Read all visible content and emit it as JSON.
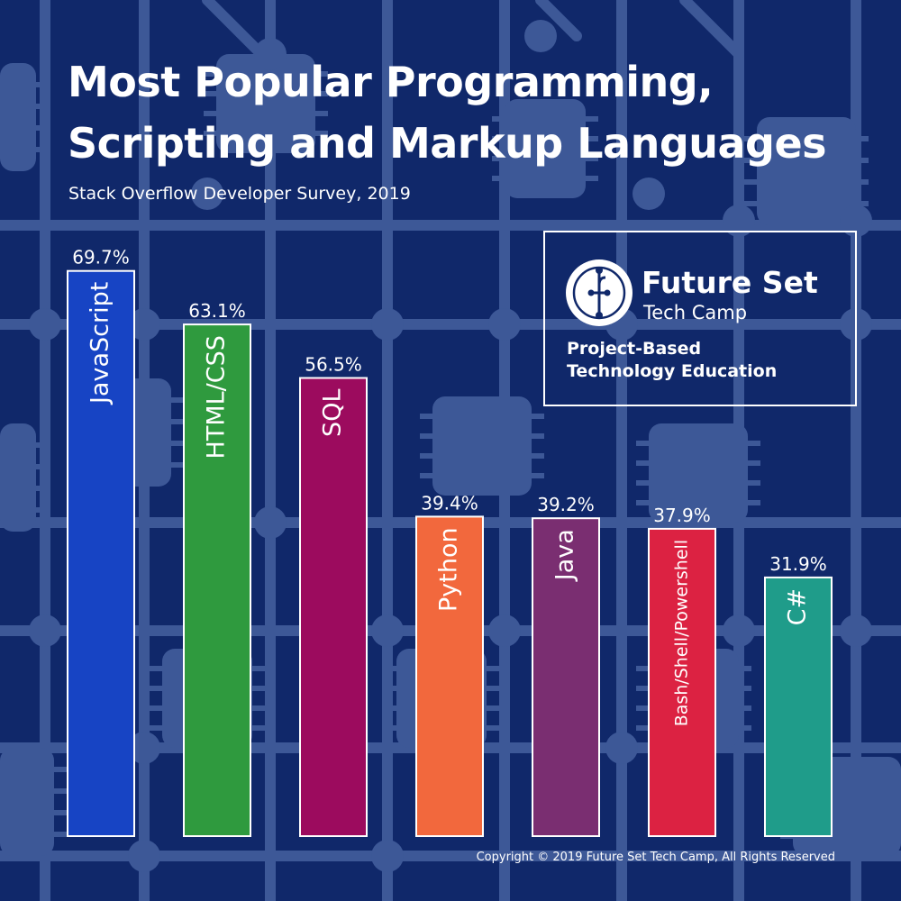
{
  "header": {
    "title_line1": "Most Popular Programming,",
    "title_line2": "Scripting and Markup Languages",
    "subtitle": "Stack Overflow Developer Survey, 2019"
  },
  "brand": {
    "name": "Future Set",
    "sub": "Tech Camp",
    "tagline_line1": "Project-Based",
    "tagline_line2": "Technology Education"
  },
  "footer": {
    "copyright": "Copyright © 2019 Future Set Tech Camp, All Rights Reserved"
  },
  "colors": {
    "background": "#10286a",
    "pattern": "#3d5897",
    "bars": [
      "#1744c4",
      "#2f9a3e",
      "#9c0b5e",
      "#f2683d",
      "#7a2e71",
      "#dc2242",
      "#1f9c8a"
    ]
  },
  "chart_data": {
    "type": "bar",
    "title": "Most Popular Programming, Scripting and Markup Languages",
    "subtitle": "Stack Overflow Developer Survey, 2019",
    "categories": [
      "JavaScript",
      "HTML/CSS",
      "SQL",
      "Python",
      "Java",
      "Bash/Shell/Powershell",
      "C#"
    ],
    "values": [
      69.7,
      63.1,
      56.5,
      39.4,
      39.2,
      37.9,
      31.9
    ],
    "value_labels": [
      "69.7%",
      "63.1%",
      "56.5%",
      "39.4%",
      "39.2%",
      "37.9%",
      "31.9%"
    ],
    "unit": "%",
    "xlabel": "",
    "ylabel": "",
    "ylim": [
      0,
      100
    ],
    "grid": false,
    "legend": "none"
  }
}
